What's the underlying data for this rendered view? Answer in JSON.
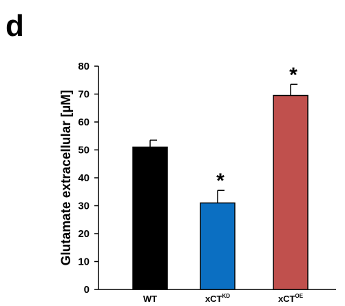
{
  "panel_label": "d",
  "chart_data": {
    "type": "bar",
    "title": "",
    "xlabel": "",
    "ylabel": "Glutamate extracellular  [µM]",
    "ylim": [
      0,
      80
    ],
    "yticks": [
      0,
      10,
      20,
      30,
      40,
      50,
      60,
      70,
      80
    ],
    "categories": [
      {
        "base": "WT",
        "sup": ""
      },
      {
        "base": "xCT",
        "sup": "KD"
      },
      {
        "base": "xCT",
        "sup": "OE"
      }
    ],
    "values": [
      51,
      31,
      69.5
    ],
    "error": [
      2.5,
      4.5,
      4
    ],
    "significance": [
      "",
      "*",
      "*"
    ],
    "colors": [
      "#000000",
      "#0b6fc2",
      "#c0504d"
    ],
    "grid": false,
    "legend": "none"
  }
}
